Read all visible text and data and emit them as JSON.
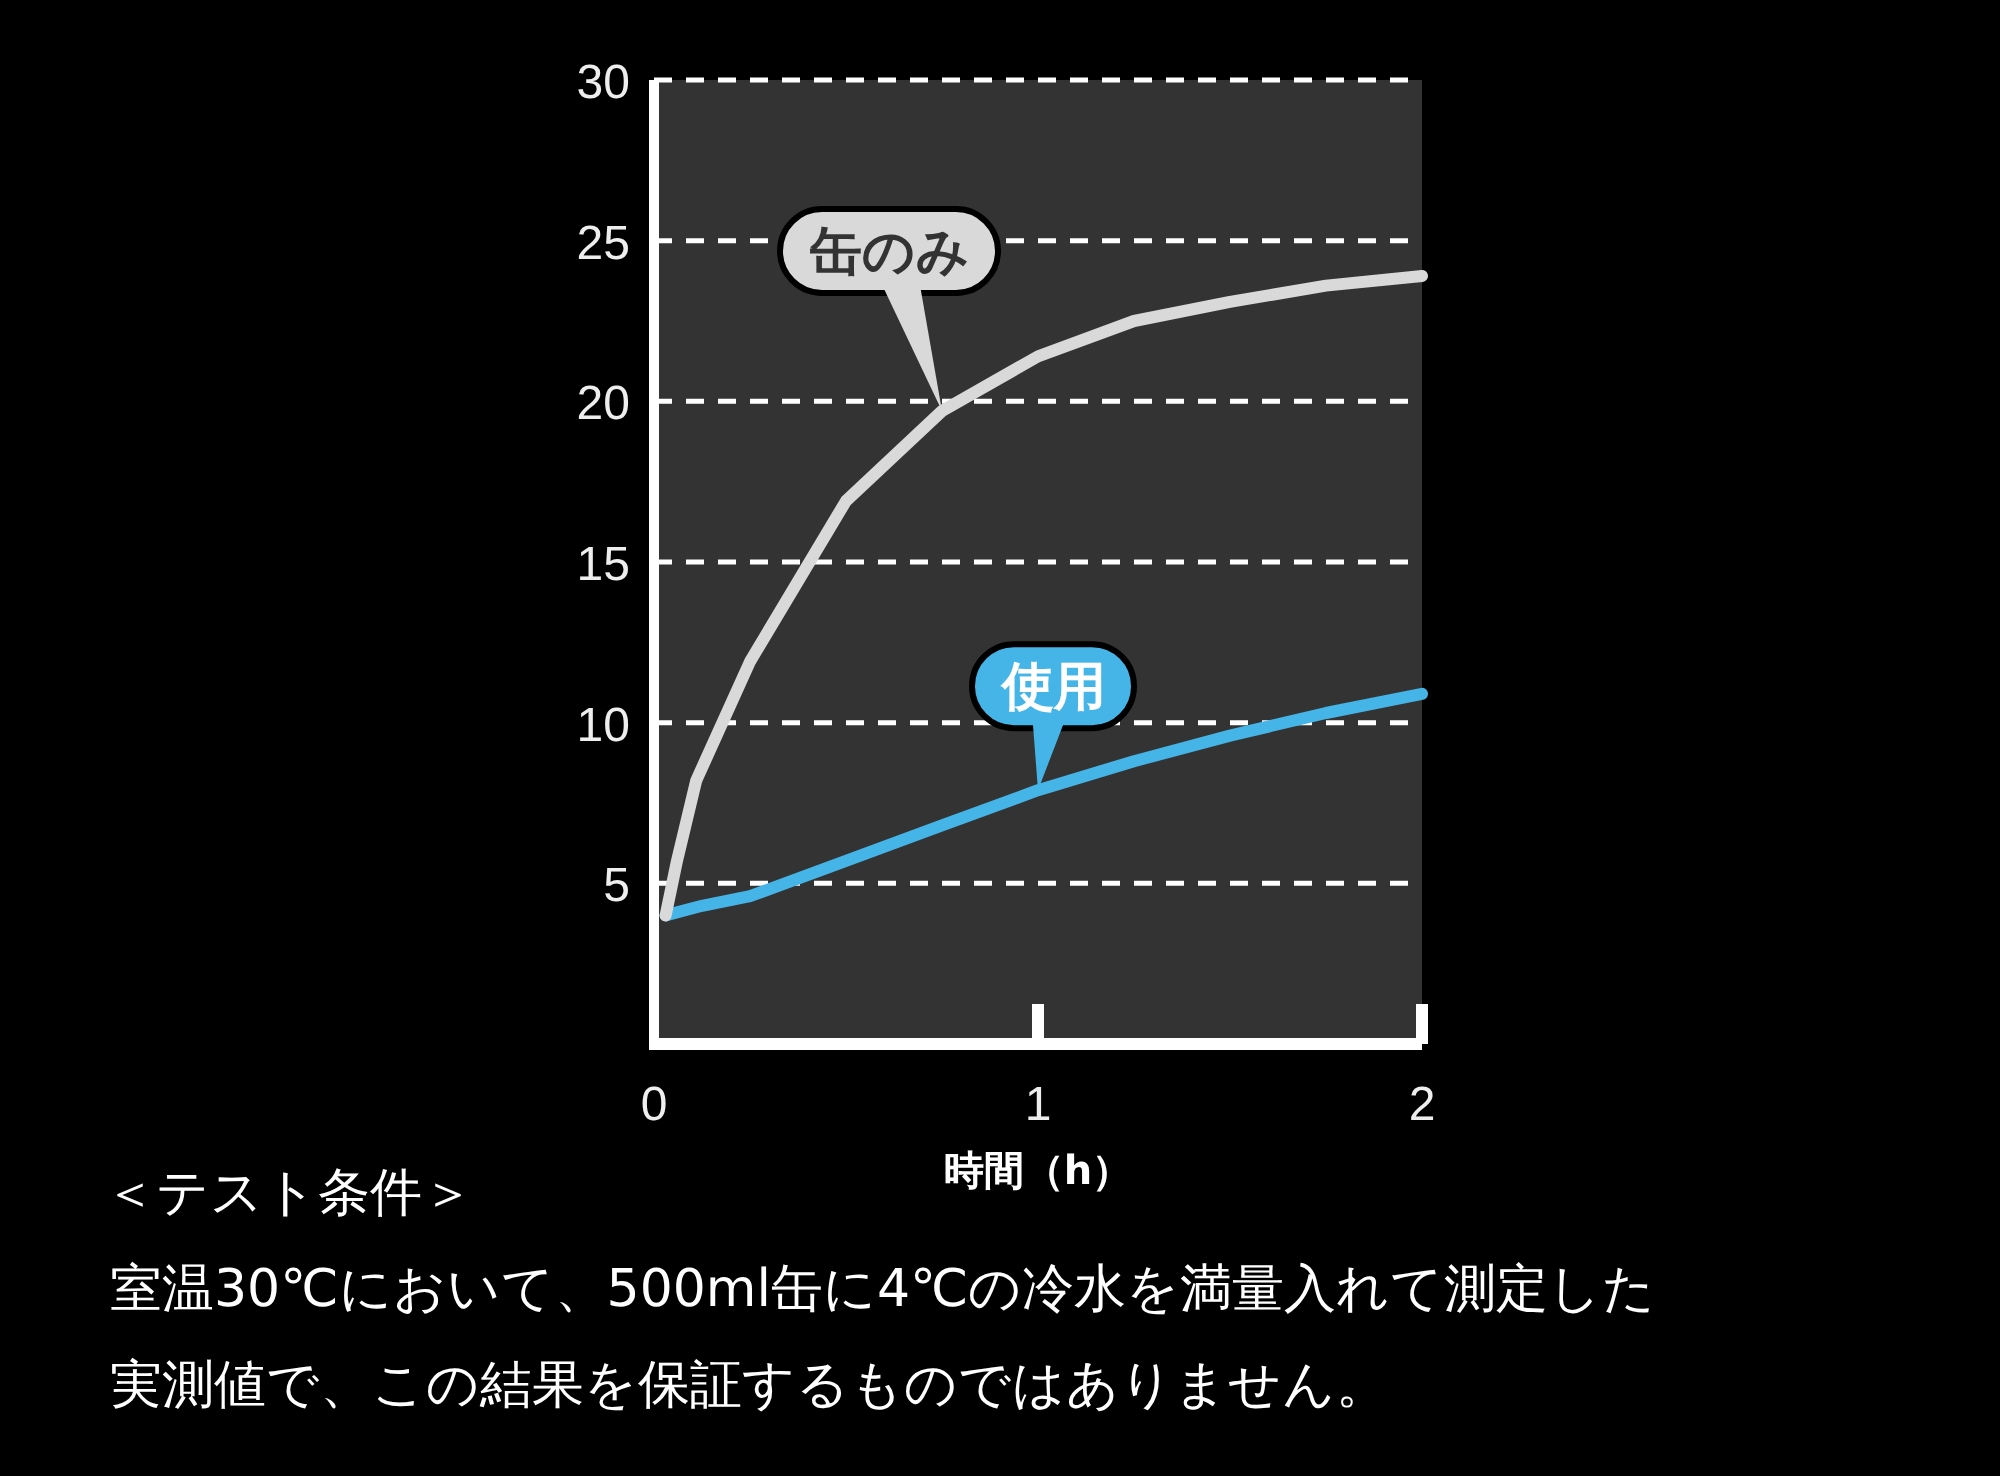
{
  "chart_data": {
    "type": "line",
    "xlabel": "時間（h）",
    "xlim": [
      0,
      2
    ],
    "xticks": [
      0,
      1,
      2
    ],
    "ylim": [
      0,
      30
    ],
    "yticks": [
      5,
      10,
      15,
      20,
      25,
      30
    ],
    "grid": "y",
    "line_style": "solid",
    "marker": "none",
    "series": [
      {
        "name": "缶のみ",
        "color": "#d9d9d9",
        "x": [
          0.03,
          0.06,
          0.11,
          0.25,
          0.5,
          0.75,
          1,
          1.25,
          1.5,
          1.75,
          2
        ],
        "values": [
          4,
          5.7,
          8.2,
          11.9,
          16.9,
          19.7,
          21.4,
          22.5,
          23.1,
          23.6,
          23.9
        ]
      },
      {
        "name": "使用",
        "color": "#45b5e8",
        "x": [
          0.03,
          0.125,
          0.25,
          0.5,
          0.75,
          1,
          1.25,
          1.5,
          1.75,
          2
        ],
        "values": [
          4,
          4.3,
          4.6,
          5.7,
          6.8,
          7.9,
          8.8,
          9.6,
          10.3,
          10.9
        ]
      }
    ],
    "annotations": [
      "＜テスト条件＞",
      "室温30℃において、500ml缶に4℃の冷水を満量入れて測定した",
      "実測値で、この結果を保証するものではありません。"
    ]
  }
}
